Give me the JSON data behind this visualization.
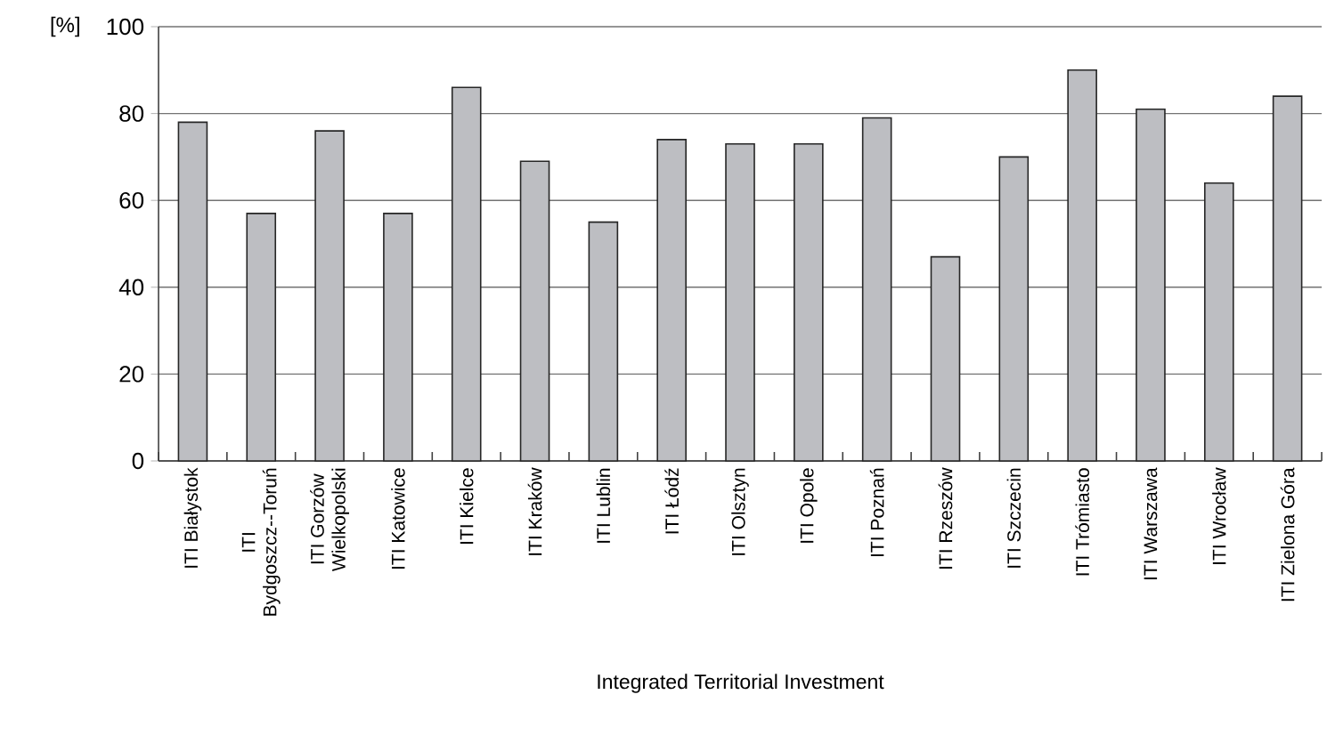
{
  "chart_data": {
    "type": "bar",
    "xlabel": "Integrated Territorial Investment",
    "ylabel": "[%]",
    "categories": [
      "ITI Białystok",
      "ITI Bydgoszcz--Toruń",
      "ITI Gorzów Wielkopolski",
      "ITI Katowice",
      "ITI Kielce",
      "ITI Kraków",
      "ITI Lublin",
      "ITI Łódź",
      "ITI Olsztyn",
      "ITI Opole",
      "ITI Poznań",
      "ITI Rzeszów",
      "ITI Szczecin",
      "ITI Trómiasto",
      "ITI Warszawa",
      "ITI Wrocław",
      "ITI Zielona Góra"
    ],
    "values": [
      78,
      57,
      76,
      57,
      86,
      69,
      55,
      74,
      73,
      73,
      79,
      47,
      70,
      90,
      81,
      64,
      84
    ],
    "color": "#bdbec2",
    "ylim": [
      0,
      100
    ],
    "yticks": [
      0,
      20,
      40,
      60,
      80,
      100
    ],
    "grid": "y"
  }
}
